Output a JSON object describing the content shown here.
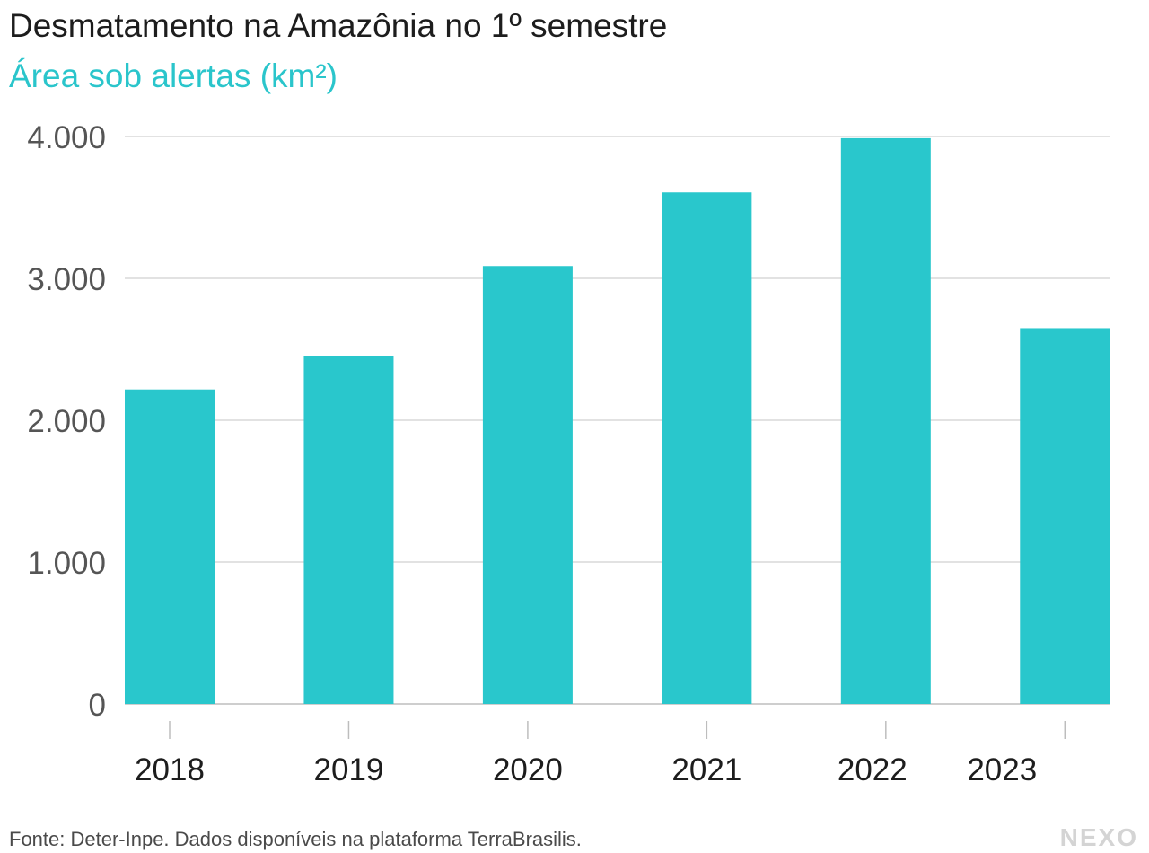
{
  "title": "Desmatamento na Amazônia no 1º semestre",
  "subtitle": "Área sob alertas (km²)",
  "source": "Fonte: Deter-Inpe. Dados disponíveis na plataforma TerraBrasilis.",
  "brand": "NEXO",
  "colors": {
    "bar": "#29c7cc",
    "grid": "#d9d9d9",
    "axis": "#bdbdbd",
    "tick_text": "#555555",
    "category_text": "#1d1d1d"
  },
  "chart_data": {
    "type": "bar",
    "categories": [
      "2018",
      "2019",
      "2020",
      "2021",
      "2022",
      "2023"
    ],
    "values": [
      2217,
      2452,
      3087,
      3606,
      3988,
      2649
    ],
    "ylim": [
      0,
      4000
    ],
    "yticks": [
      0,
      1000,
      2000,
      3000,
      4000
    ],
    "ytick_labels": [
      "0",
      "1.000",
      "2.000",
      "3.000",
      "4.000"
    ],
    "grid": true
  }
}
